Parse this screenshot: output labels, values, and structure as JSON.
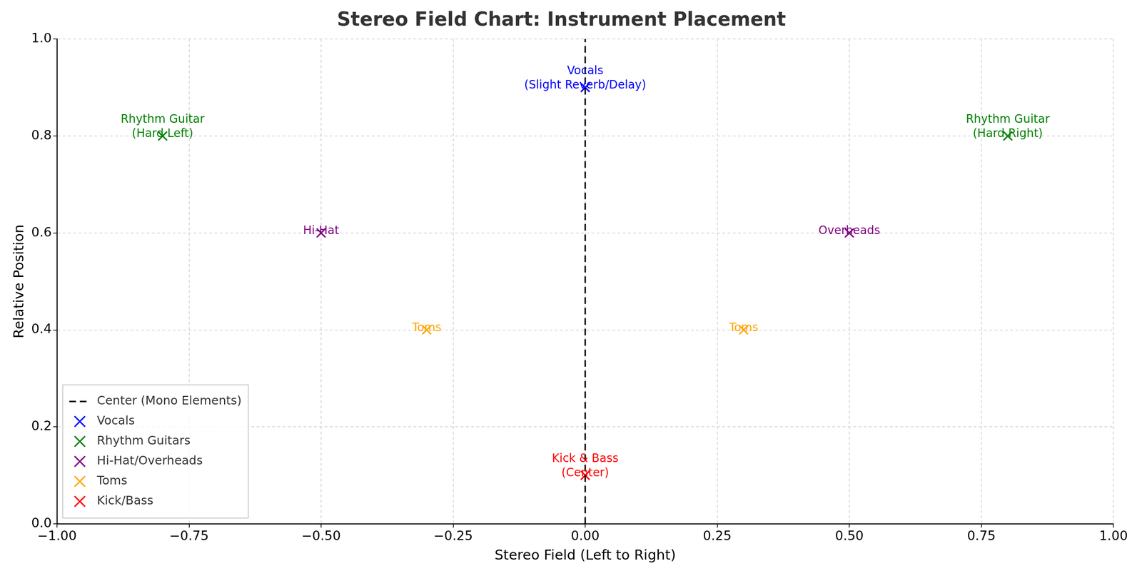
{
  "chart_data": {
    "type": "scatter",
    "title": "Stereo Field Chart: Instrument Placement",
    "x_label": "Stereo Field (Left to Right)",
    "y_label": "Relative Position",
    "xlim": [
      -1,
      1
    ],
    "xticks": [
      {
        "value": -1,
        "label": "−1.00"
      },
      {
        "value": -0.75,
        "label": "−0.75"
      },
      {
        "value": -0.5,
        "label": "−0.50"
      },
      {
        "value": -0.25,
        "label": "−0.25"
      },
      {
        "value": 0,
        "label": "0.00"
      },
      {
        "value": 0.25,
        "label": "0.25"
      },
      {
        "value": 0.5,
        "label": "0.50"
      },
      {
        "value": 0.75,
        "label": "0.75"
      },
      {
        "value": 1,
        "label": "1.00"
      }
    ],
    "ylim": [
      0,
      1
    ],
    "yticks": [
      {
        "value": 0,
        "label": "0.0"
      },
      0.2,
      0.4,
      0.6,
      0.8,
      {
        "value": 1,
        "label": "1.0"
      }
    ],
    "grid": true,
    "legend": "lower left",
    "series": [
      {
        "name": "Center (Mono Elements)",
        "type": "line",
        "line_style": "dashed",
        "color": "#000000",
        "x": [
          0,
          0
        ],
        "values": [
          0,
          1
        ]
      },
      {
        "name": "Vocals",
        "color": "#0000ff",
        "marker": "x",
        "x": [
          0
        ],
        "values": [
          0.9
        ],
        "annotations": [
          "Vocals\n(Slight Reverb/Delay)"
        ]
      },
      {
        "name": "Rhythm Guitars",
        "color": "#008000",
        "marker": "x",
        "x": [
          -0.8,
          0.8
        ],
        "values": [
          0.8,
          0.8
        ],
        "annotations": [
          "Rhythm Guitar\n(Hard Left)",
          "Rhythm Guitar\n(Hard Right)"
        ]
      },
      {
        "name": "Hi-Hat/Overheads",
        "color": "#800080",
        "marker": "x",
        "x": [
          -0.5,
          0.5
        ],
        "values": [
          0.6,
          0.6
        ],
        "annotations": [
          "Hi-Hat",
          "Overheads"
        ]
      },
      {
        "name": "Toms",
        "color": "#ffa500",
        "marker": "x",
        "x": [
          -0.3,
          0.3
        ],
        "values": [
          0.4,
          0.4
        ],
        "annotations": [
          "Toms",
          "Toms"
        ]
      },
      {
        "name": "Kick/Bass",
        "color": "#ff0000",
        "marker": "x",
        "x": [
          0
        ],
        "values": [
          0.1
        ],
        "annotations": [
          "Kick & Bass\n(Center)"
        ]
      }
    ]
  }
}
